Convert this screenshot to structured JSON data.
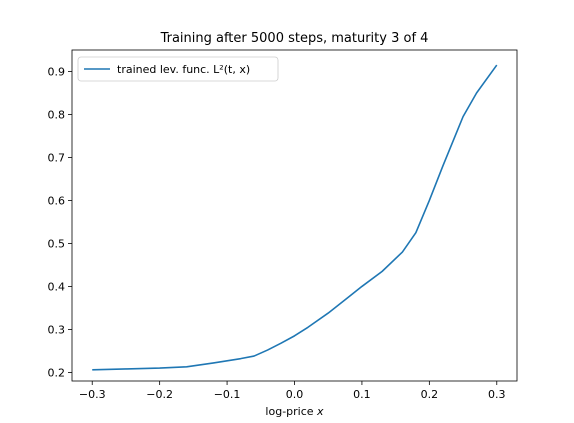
{
  "chart_data": {
    "type": "line",
    "title": "Training after 5000 steps, maturity 3 of 4",
    "xlabel": "log-price x",
    "ylabel": "",
    "xlim": [
      -0.33,
      0.33
    ],
    "ylim": [
      0.18,
      0.95
    ],
    "xticks": [
      -0.3,
      -0.2,
      -0.1,
      0.0,
      0.1,
      0.2,
      0.3
    ],
    "xtick_labels": [
      "−0.3",
      "−0.2",
      "−0.1",
      "0.0",
      "0.1",
      "0.2",
      "0.3"
    ],
    "yticks": [
      0.2,
      0.3,
      0.4,
      0.5,
      0.6,
      0.7,
      0.8,
      0.9
    ],
    "ytick_labels": [
      "0.2",
      "0.3",
      "0.4",
      "0.5",
      "0.6",
      "0.7",
      "0.8",
      "0.9"
    ],
    "grid": false,
    "legend_position": "top-left",
    "series": [
      {
        "name": "trained lev. func. L²(t, x)",
        "color": "#1f77b4",
        "x": [
          -0.3,
          -0.25,
          -0.2,
          -0.16,
          -0.12,
          -0.08,
          -0.06,
          -0.04,
          -0.02,
          0.0,
          0.02,
          0.05,
          0.08,
          0.1,
          0.13,
          0.16,
          0.18,
          0.2,
          0.22,
          0.25,
          0.27,
          0.3
        ],
        "y": [
          0.206,
          0.208,
          0.21,
          0.213,
          0.222,
          0.232,
          0.238,
          0.252,
          0.268,
          0.285,
          0.305,
          0.338,
          0.375,
          0.4,
          0.435,
          0.48,
          0.525,
          0.6,
          0.68,
          0.795,
          0.85,
          0.915
        ]
      }
    ]
  }
}
